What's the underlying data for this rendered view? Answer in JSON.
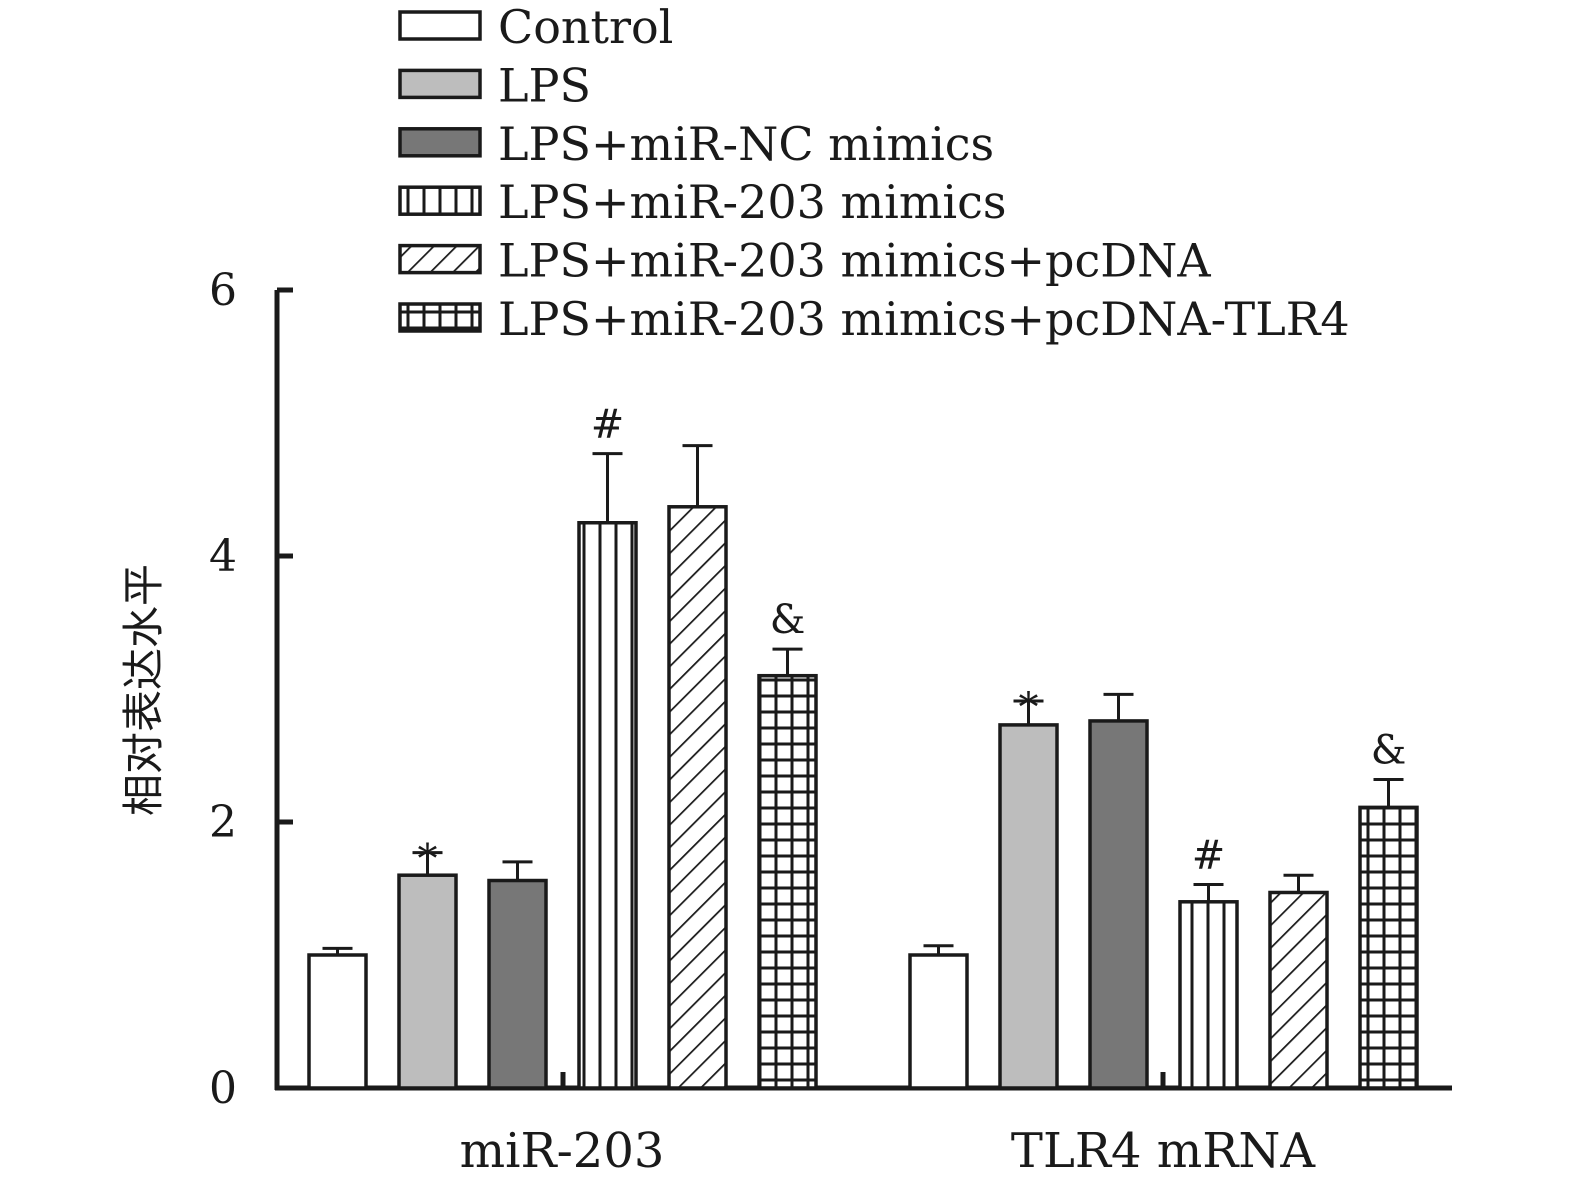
{
  "chart_data": {
    "type": "bar",
    "title": "",
    "xlabel": "",
    "ylabel": "相对表达水平",
    "ylim": [
      0,
      6
    ],
    "yticks": [
      0,
      2,
      4,
      6
    ],
    "grid": false,
    "legend_position": "top",
    "categories": [
      "miR-203",
      "TLR4 mRNA"
    ],
    "series": [
      {
        "name": "Control",
        "values": [
          1.0,
          1.0
        ],
        "errors": [
          0.05,
          0.07
        ],
        "annotations": [
          "",
          ""
        ],
        "fill": "#ffffff",
        "pattern": "none"
      },
      {
        "name": "LPS",
        "values": [
          1.6,
          2.73
        ],
        "errors": [
          0.17,
          0.18
        ],
        "annotations": [
          "*",
          "*"
        ],
        "fill": "#bdbdbd",
        "pattern": "none"
      },
      {
        "name": "LPS+miR-NC mimics",
        "values": [
          1.56,
          2.76
        ],
        "errors": [
          0.14,
          0.2
        ],
        "annotations": [
          "",
          ""
        ],
        "fill": "#777777",
        "pattern": "none"
      },
      {
        "name": "LPS+miR-203 mimics",
        "values": [
          4.25,
          1.4
        ],
        "errors": [
          0.52,
          0.13
        ],
        "annotations": [
          "#",
          "#"
        ],
        "fill": "#ffffff",
        "pattern": "vertical"
      },
      {
        "name": "LPS+miR-203 mimics+pcDNA",
        "values": [
          4.37,
          1.47
        ],
        "errors": [
          0.46,
          0.13
        ],
        "annotations": [
          "",
          ""
        ],
        "fill": "#ffffff",
        "pattern": "diagonal"
      },
      {
        "name": "LPS+miR-203 mimics+pcDNA-TLR4",
        "values": [
          3.1,
          2.11
        ],
        "errors": [
          0.2,
          0.21
        ],
        "annotations": [
          "&",
          "&"
        ],
        "fill": "#ffffff",
        "pattern": "grid"
      }
    ]
  }
}
